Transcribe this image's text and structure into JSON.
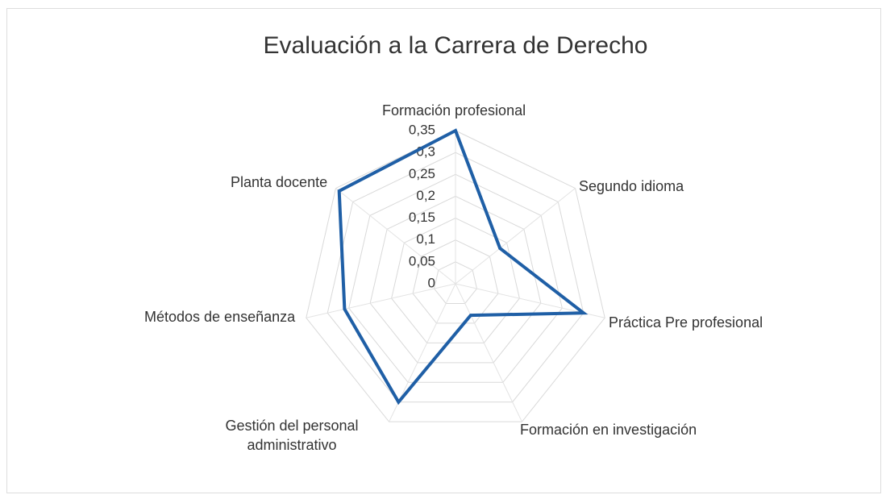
{
  "chart_data": {
    "type": "radar",
    "title": "Evaluación a la Carrera de Derecho",
    "categories": [
      "Formación profesional",
      "Segundo idioma",
      "Práctica Pre profesional",
      "Formación en investigación",
      "Gestión del personal administrativo",
      "Métodos de enseñanza",
      "Planta docente"
    ],
    "values": [
      0.35,
      0.13,
      0.3,
      0.08,
      0.3,
      0.26,
      0.34
    ],
    "color": "#1f5fa6",
    "ylim": [
      0,
      0.35
    ],
    "yticks": [
      0,
      {
        "value": 0.05,
        "label": "0,05"
      },
      {
        "value": 0.1,
        "label": "0,1"
      },
      {
        "value": 0.15,
        "label": "0,15"
      },
      {
        "value": 0.2,
        "label": "0,2"
      },
      {
        "value": 0.25,
        "label": "0,25"
      },
      {
        "value": 0.3,
        "label": "0,3"
      },
      {
        "value": 0.35,
        "label": "0,35"
      }
    ],
    "grid": true
  }
}
